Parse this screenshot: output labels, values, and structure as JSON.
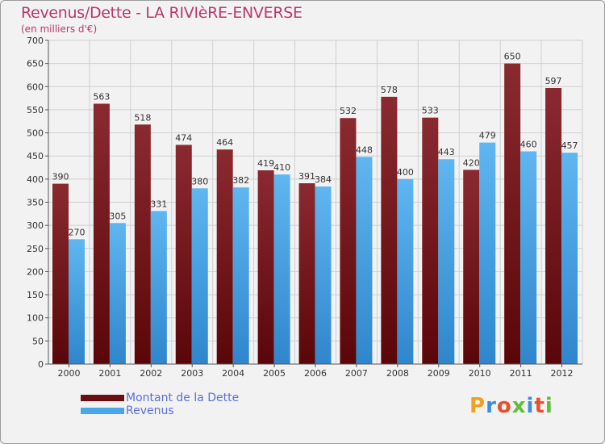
{
  "title": "Revenus/Dette - LA RIVIèRE-ENVERSE",
  "subtitle": "(en milliers d'€)",
  "logo_text": "Proxiti",
  "colors": {
    "dette": "#7a1a1f",
    "revenus": "#4aa6e8",
    "grid": "#cfcfcf",
    "text": "#333333",
    "title": "#b8376b",
    "legend_text": "#5a6fd6"
  },
  "legend": {
    "dette_label": "Montant de la Dette",
    "revenus_label": "Revenus"
  },
  "chart_data": {
    "type": "bar",
    "categories": [
      "2000",
      "2001",
      "2002",
      "2003",
      "2004",
      "2005",
      "2006",
      "2007",
      "2008",
      "2009",
      "2010",
      "2011",
      "2012"
    ],
    "series": [
      {
        "name": "Montant de la Dette",
        "values": [
          390,
          563,
          518,
          474,
          464,
          419,
          391,
          532,
          578,
          533,
          420,
          650,
          597
        ]
      },
      {
        "name": "Revenus",
        "values": [
          270,
          305,
          331,
          380,
          382,
          410,
          384,
          448,
          400,
          443,
          479,
          460,
          457
        ]
      }
    ],
    "ylim": [
      0,
      700
    ],
    "yticks": [
      0,
      50,
      100,
      150,
      200,
      250,
      300,
      350,
      400,
      450,
      500,
      550,
      600,
      650,
      700
    ],
    "grid": true,
    "legend_position": "bottom-left"
  }
}
